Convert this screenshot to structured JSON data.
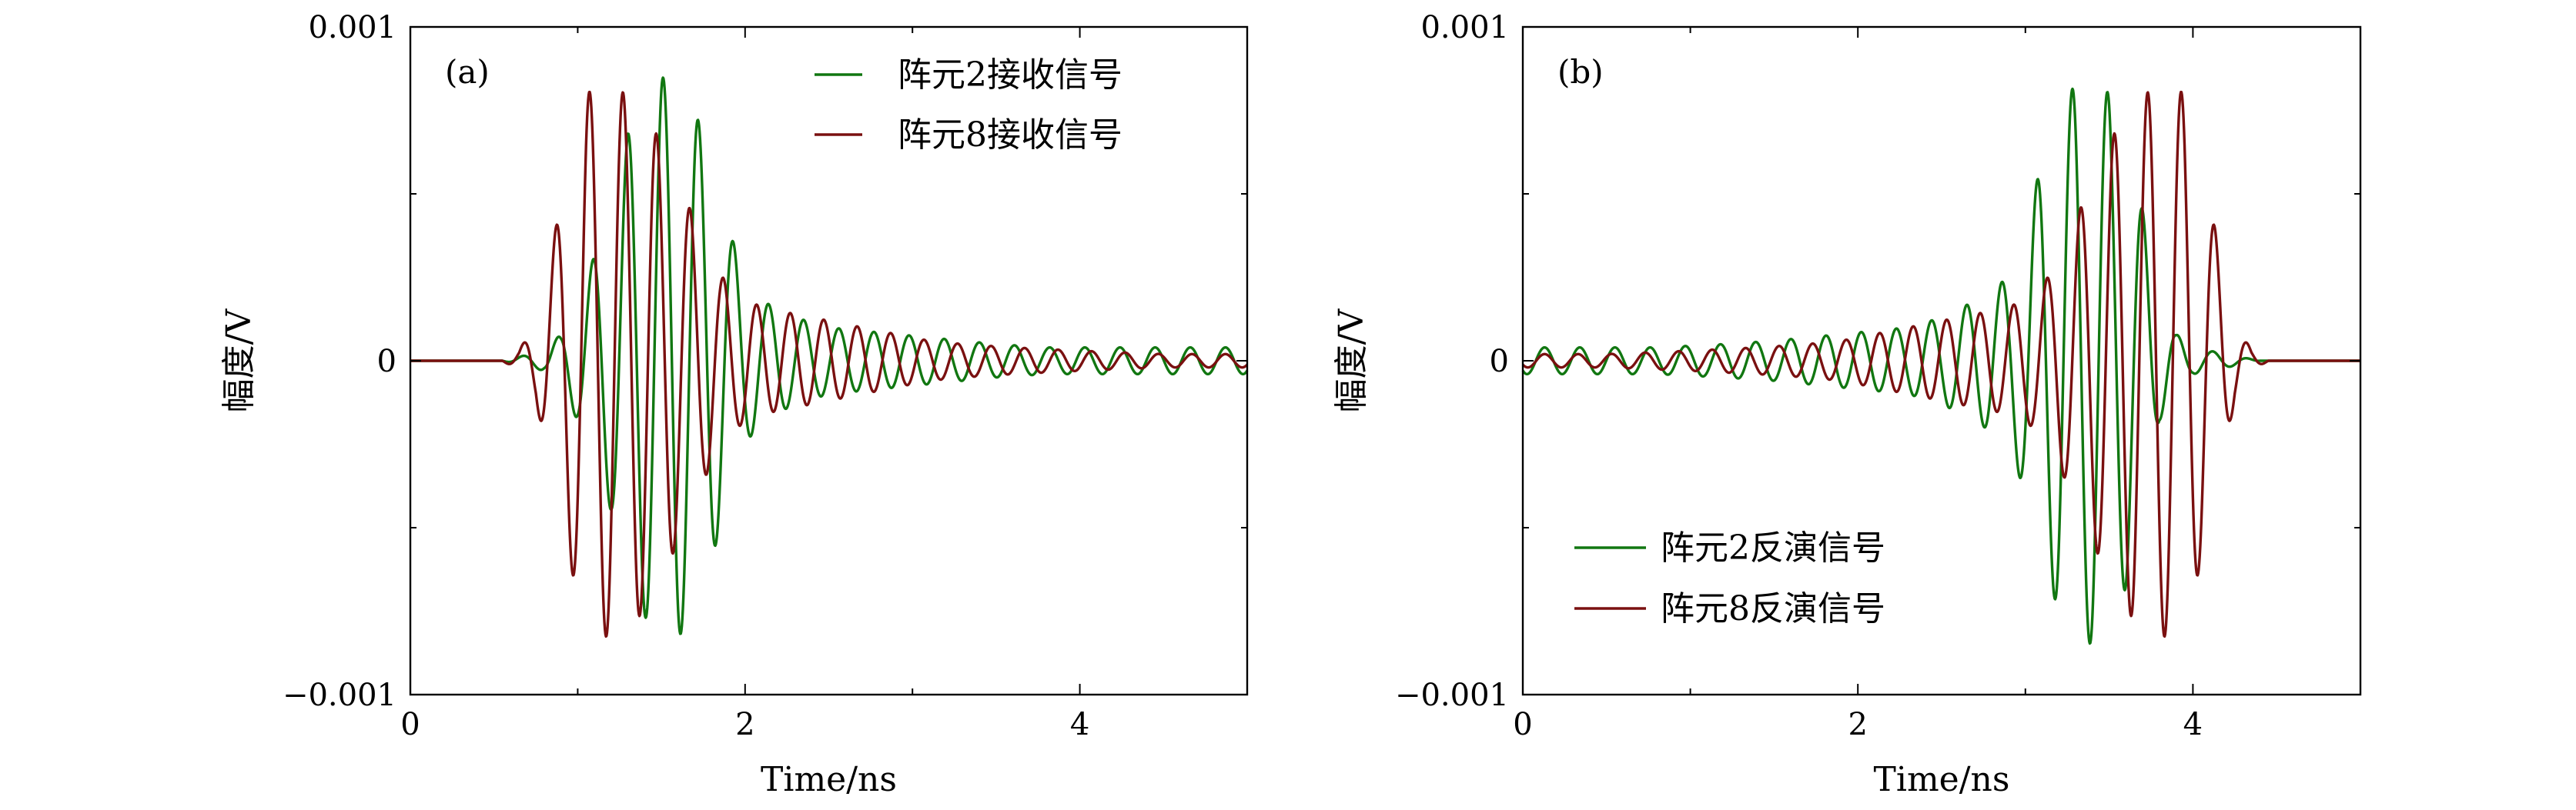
{
  "colors": {
    "green": "#117711",
    "red": "#7a1010"
  },
  "chart_data": [
    {
      "type": "line",
      "panel_label": "(a)",
      "xlabel": "Time/ns",
      "ylabel": "幅度/V",
      "xlim": [
        0,
        5
      ],
      "ylim": [
        -0.001,
        0.001
      ],
      "x_ticks": [
        0,
        2,
        4
      ],
      "x_tick_labels": [
        "0",
        "2",
        "4"
      ],
      "y_ticks": [
        -0.001,
        0,
        0.001
      ],
      "y_tick_labels": [
        "−0.001",
        "0",
        "0.001"
      ],
      "legend_position": "top-right",
      "series": [
        {
          "name": "阵元2接收信号",
          "color": "#117711",
          "t_ns": [
            0.55,
            0.8,
            0.9,
            1.0,
            1.2,
            1.3,
            1.5,
            1.6,
            1.7,
            1.8,
            1.9,
            2.0,
            2.1,
            2.3,
            2.5,
            2.7,
            2.9,
            3.1,
            3.3,
            3.5,
            3.8,
            4.2,
            4.6,
            5.0
          ],
          "envelope_V": [
            0.0,
            3e-05,
            8e-05,
            0.00018,
            0.00045,
            0.00068,
            0.00085,
            0.00083,
            0.00075,
            0.0006,
            0.0004,
            0.00025,
            0.00018,
            0.00013,
            0.0001,
            9e-05,
            8e-05,
            7e-05,
            6e-05,
            5e-05,
            4e-05,
            4e-05,
            4e-05,
            4e-05
          ],
          "period_ns": 0.21,
          "phase_ns": 1.51
        },
        {
          "name": "阵元8接收信号",
          "color": "#7a1010",
          "t_ns": [
            0.55,
            0.65,
            0.75,
            0.85,
            0.95,
            1.05,
            1.15,
            1.25,
            1.35,
            1.45,
            1.55,
            1.65,
            1.75,
            1.85,
            1.95,
            2.1,
            2.3,
            2.5,
            2.7,
            2.9,
            3.1,
            3.3,
            3.6,
            4.0,
            4.5,
            5.0
          ],
          "envelope_V": [
            0.0,
            3e-05,
            0.00012,
            0.00035,
            0.0006,
            0.0008,
            0.00083,
            0.00081,
            0.00078,
            0.0007,
            0.0006,
            0.00048,
            0.00036,
            0.00026,
            0.0002,
            0.00016,
            0.00014,
            0.00012,
            0.0001,
            8e-05,
            6e-05,
            5e-05,
            4e-05,
            3e-05,
            2e-05,
            2e-05
          ],
          "period_ns": 0.2,
          "phase_ns": 1.07
        }
      ]
    },
    {
      "type": "line",
      "panel_label": "(b)",
      "xlabel": "Time/ns",
      "ylabel": "幅度/V",
      "xlim": [
        0,
        5
      ],
      "ylim": [
        -0.001,
        0.001
      ],
      "x_ticks": [
        0,
        2,
        4
      ],
      "x_tick_labels": [
        "0",
        "2",
        "4"
      ],
      "y_ticks": [
        -0.001,
        0,
        0.001
      ],
      "y_tick_labels": [
        "−0.001",
        "0",
        "0.001"
      ],
      "legend_position": "bottom-left",
      "series": [
        {
          "name": "阵元2反演信号",
          "color": "#117711",
          "t_ns": [
            0.0,
            0.4,
            0.8,
            1.2,
            1.5,
            1.7,
            1.9,
            2.1,
            2.3,
            2.5,
            2.7,
            2.9,
            3.0,
            3.1,
            3.2,
            3.3,
            3.4,
            3.5,
            3.6,
            3.7,
            3.8,
            3.9,
            4.0,
            4.2,
            4.4,
            5.0
          ],
          "envelope_V": [
            4e-05,
            4e-05,
            4e-05,
            5e-05,
            6e-05,
            7e-05,
            8e-05,
            9e-05,
            0.0001,
            0.00013,
            0.00018,
            0.00025,
            0.0004,
            0.0006,
            0.00075,
            0.00083,
            0.00085,
            0.0008,
            0.00068,
            0.00045,
            0.00018,
            8e-05,
            4e-05,
            2e-05,
            0.0,
            0.0
          ],
          "period_ns": 0.21,
          "phase_ns": 3.49
        },
        {
          "name": "阵元8反演信号",
          "color": "#7a1010",
          "t_ns": [
            0.0,
            0.5,
            1.0,
            1.4,
            1.7,
            1.9,
            2.1,
            2.3,
            2.5,
            2.7,
            2.9,
            3.05,
            3.15,
            3.35,
            3.45,
            3.55,
            3.65,
            3.75,
            3.85,
            3.95,
            4.05,
            4.15,
            4.25,
            4.35,
            4.45,
            4.55,
            5.0
          ],
          "envelope_V": [
            2e-05,
            2e-05,
            3e-05,
            4e-05,
            5e-05,
            6e-05,
            8e-05,
            0.0001,
            0.00012,
            0.00014,
            0.00016,
            0.0002,
            0.00026,
            0.00048,
            0.0006,
            0.0007,
            0.00078,
            0.00081,
            0.00083,
            0.0008,
            0.0006,
            0.00035,
            0.00012,
            3e-05,
            0.0,
            0.0,
            0.0
          ],
          "period_ns": 0.2,
          "phase_ns": 3.93
        }
      ]
    }
  ]
}
